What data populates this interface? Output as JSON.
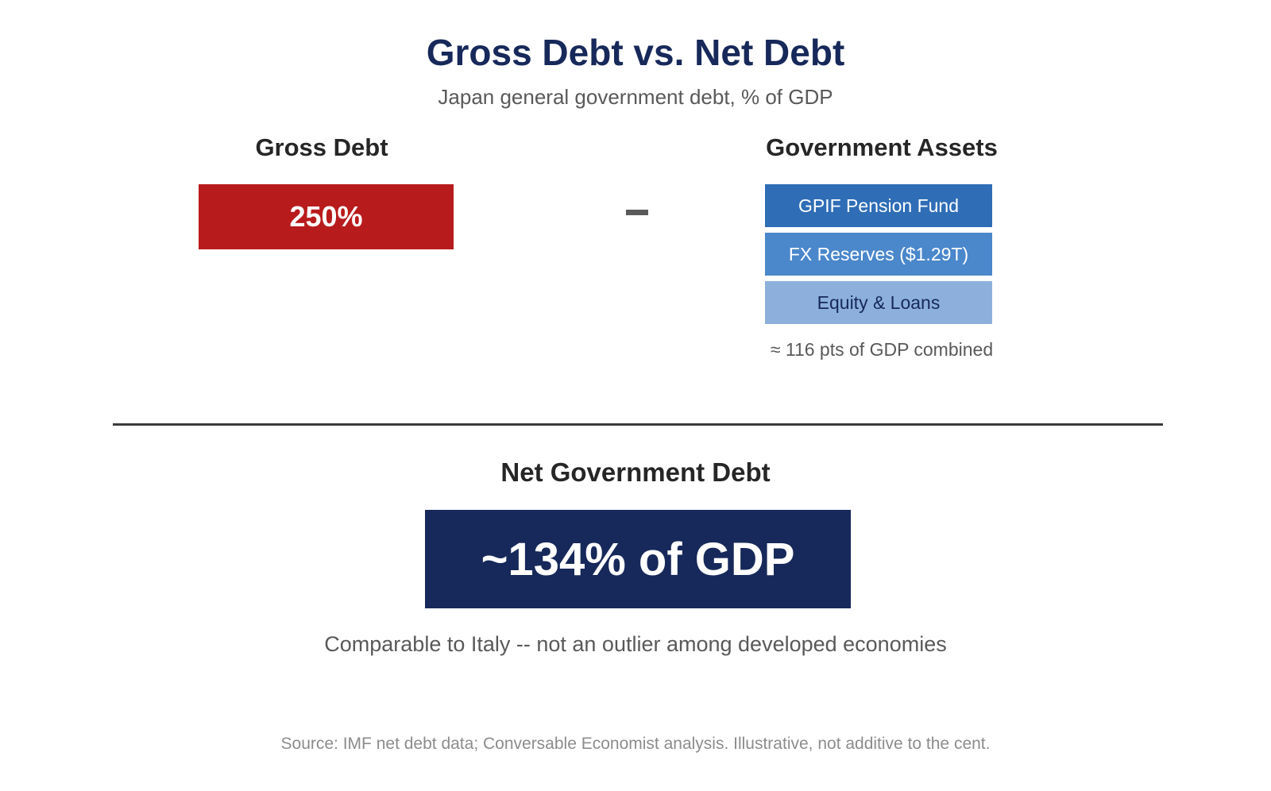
{
  "header": {
    "title": "Gross Debt vs. Net Debt",
    "subtitle": "Japan general government debt, % of GDP"
  },
  "gross_debt": {
    "heading": "Gross Debt",
    "value_label": "250%",
    "color": "#b81b1c"
  },
  "operator": {
    "symbol": "minus-sign"
  },
  "government_assets": {
    "heading": "Government Assets",
    "items": [
      {
        "label": "GPIF Pension Fund",
        "color": "#2f6db6"
      },
      {
        "label": "FX Reserves ($1.29T)",
        "color": "#4a87cb"
      },
      {
        "label": "Equity & Loans",
        "color": "#8cb0db"
      }
    ],
    "note": "≈ 116 pts of GDP combined"
  },
  "net_debt": {
    "heading": "Net Government Debt",
    "value_label": "~134% of GDP",
    "note": "Comparable to Italy -- not an outlier among developed economies",
    "color": "#17295a"
  },
  "footer": {
    "source": "Source: IMF net debt data; Conversable Economist analysis. Illustrative, not additive to the cent."
  }
}
